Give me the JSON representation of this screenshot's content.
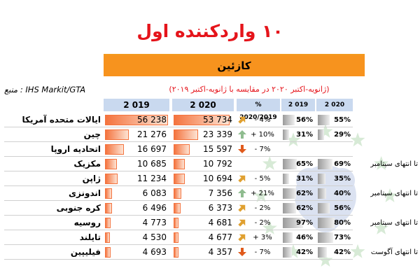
{
  "title": "۱۰ واردکننده اول",
  "band_label": "کازئین",
  "source": "منبع : IHS Markit/GTA",
  "period": "(ژانویه-اکتبر ۲۰۲۰ در مقایسه با ژانویه-اکتبر ۲۰۱۹)",
  "colors": {
    "title": "#e5141b",
    "band": "#f7931e",
    "bar": "#f4733e",
    "header": "#c9d9ef",
    "up": "#8fbc8f",
    "down": "#e05a1c",
    "flat": "#e0a030"
  },
  "chart_data": {
    "type": "table",
    "columns": [
      "",
      "2 019",
      "2 020",
      "% 2020/2019",
      "2 019",
      "2 020"
    ],
    "rows": [
      {
        "country": "ایالات متحده آمریکا",
        "v2019": 56238,
        "v2019_label": "56 238",
        "v2020": 53734,
        "v2020_label": "53 734",
        "change_label": "- 4%",
        "trend": "flat",
        "share2019": 56,
        "share2019_label": "56%",
        "share2020": 55,
        "share2020_label": "55%",
        "note": ""
      },
      {
        "country": "چین",
        "v2019": 21276,
        "v2019_label": "21 276",
        "v2020": 23339,
        "v2020_label": "23 339",
        "change_label": "+ 10%",
        "trend": "up",
        "share2019": 31,
        "share2019_label": "31%",
        "share2020": 29,
        "share2020_label": "29%",
        "note": ""
      },
      {
        "country": "اتحادیه اروپا",
        "v2019": 16697,
        "v2019_label": "16 697",
        "v2020": 15597,
        "v2020_label": "15 597",
        "change_label": "- 7%",
        "trend": "down",
        "share2019": null,
        "share2019_label": "",
        "share2020": null,
        "share2020_label": "",
        "note": ""
      },
      {
        "country": "مکزیک",
        "v2019": 10685,
        "v2019_label": "10 685",
        "v2020": 10792,
        "v2020_label": "10 792",
        "change_label": "",
        "trend": "",
        "share2019": 65,
        "share2019_label": "65%",
        "share2020": 69,
        "share2020_label": "69%",
        "note": "تا انتهای سپتامبر"
      },
      {
        "country": "ژاپن",
        "v2019": 11234,
        "v2019_label": "11 234",
        "v2020": 10694,
        "v2020_label": "10 694",
        "change_label": "- 5%",
        "trend": "flat",
        "share2019": 31,
        "share2019_label": "31%",
        "share2020": 35,
        "share2020_label": "35%",
        "note": ""
      },
      {
        "country": "اندونزی",
        "v2019": 6083,
        "v2019_label": "6 083",
        "v2020": 7356,
        "v2020_label": "7 356",
        "change_label": "+ 21%",
        "trend": "up",
        "share2019": 62,
        "share2019_label": "62%",
        "share2020": 40,
        "share2020_label": "40%",
        "note": "تا انتهای سپتامبر"
      },
      {
        "country": "کره جنوبی",
        "v2019": 6496,
        "v2019_label": "6 496",
        "v2020": 6373,
        "v2020_label": "6 373",
        "change_label": "- 2%",
        "trend": "flat",
        "share2019": 62,
        "share2019_label": "62%",
        "share2020": 56,
        "share2020_label": "56%",
        "note": ""
      },
      {
        "country": "روسیه",
        "v2019": 4773,
        "v2019_label": "4 773",
        "v2020": 4681,
        "v2020_label": "4 681",
        "change_label": "- 2%",
        "trend": "flat",
        "share2019": 97,
        "share2019_label": "97%",
        "share2020": 80,
        "share2020_label": "80%",
        "note": "تا انتهای سپتامبر"
      },
      {
        "country": "تایلند",
        "v2019": 4530,
        "v2019_label": "4 530",
        "v2020": 4677,
        "v2020_label": "4 677",
        "change_label": "+ 3%",
        "trend": "flat",
        "share2019": 46,
        "share2019_label": "46%",
        "share2020": 73,
        "share2020_label": "73%",
        "note": ""
      },
      {
        "country": "فیلیپین",
        "v2019": 4693,
        "v2019_label": "4 693",
        "v2020": 4357,
        "v2020_label": "4 357",
        "change_label": "- 7%",
        "trend": "down",
        "share2019": 42,
        "share2019_label": "42%",
        "share2020": 42,
        "share2020_label": "42%",
        "note": "تا انتهای آگوست"
      }
    ]
  }
}
